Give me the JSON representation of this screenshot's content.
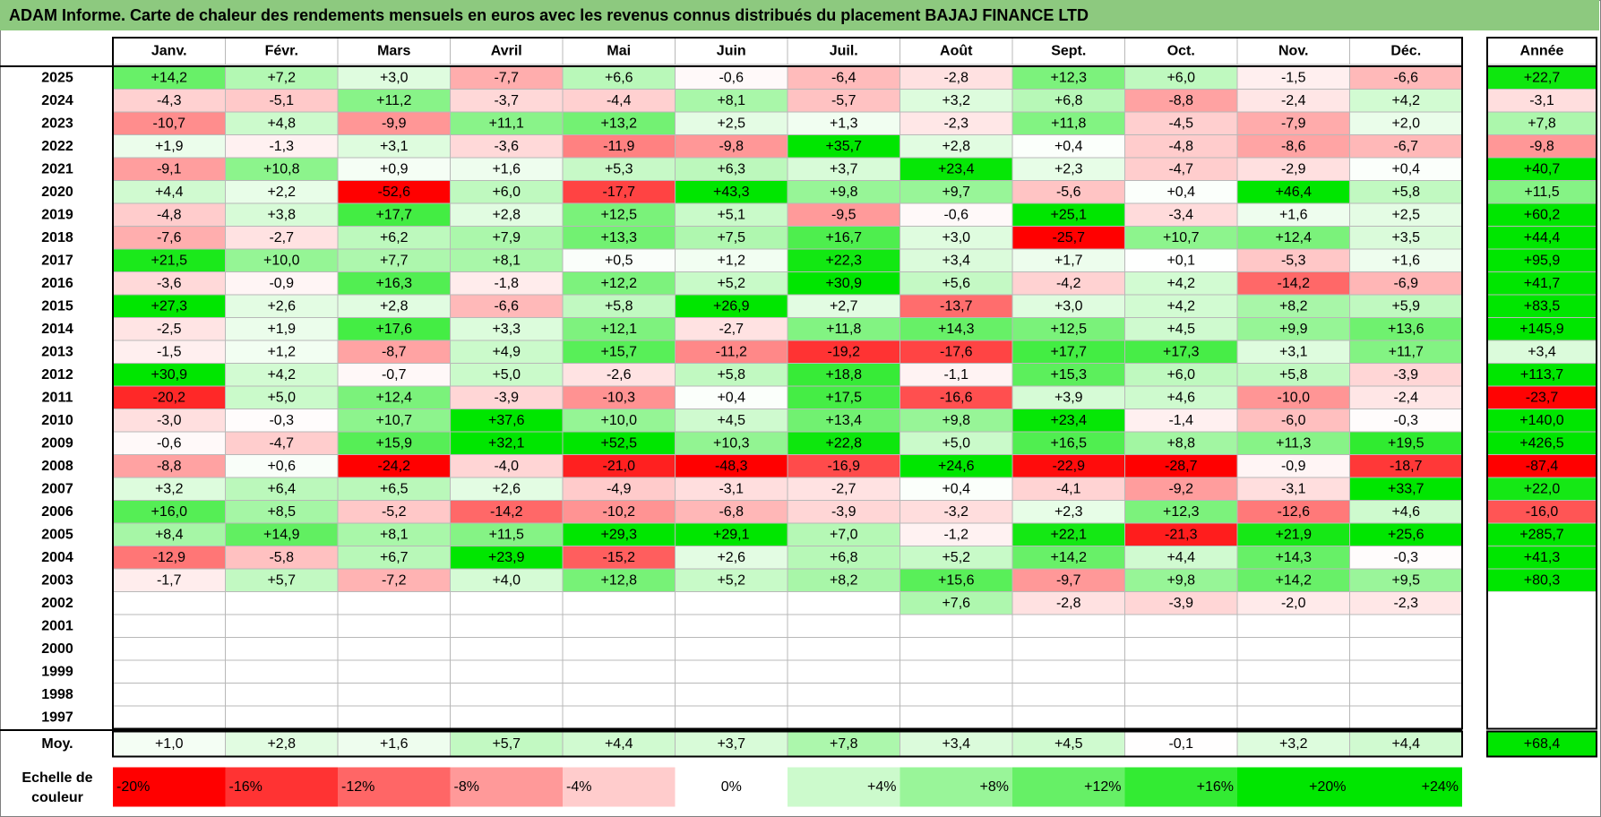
{
  "title": "ADAM Informe. Carte de chaleur des rendements mensuels en euros avec les revenus connus distribués du placement BAJAJ FINANCE LTD",
  "chart_data": {
    "type": "heatmap",
    "title": "ADAM Informe. Carte de chaleur des rendements mensuels en euros avec les revenus connus distribués du placement BAJAJ FINANCE LTD",
    "months": [
      "Janv.",
      "Févr.",
      "Mars",
      "Avril",
      "Mai",
      "Juin",
      "Juil.",
      "Août",
      "Sept.",
      "Oct.",
      "Nov.",
      "Déc."
    ],
    "year_header": "Année",
    "rows": [
      {
        "year": "2025",
        "values": [
          "+14,2",
          "+7,2",
          "+3,0",
          "-7,7",
          "+6,6",
          "-0,6",
          "-6,4",
          "-2,8",
          "+12,3",
          "+6,0",
          "-1,5",
          "-6,6"
        ],
        "annual": "+22,7"
      },
      {
        "year": "2024",
        "values": [
          "-4,3",
          "-5,1",
          "+11,2",
          "-3,7",
          "-4,4",
          "+8,1",
          "-5,7",
          "+3,2",
          "+6,8",
          "-8,8",
          "-2,4",
          "+4,2"
        ],
        "annual": "-3,1"
      },
      {
        "year": "2023",
        "values": [
          "-10,7",
          "+4,8",
          "-9,9",
          "+11,1",
          "+13,2",
          "+2,5",
          "+1,3",
          "-2,3",
          "+11,8",
          "-4,5",
          "-7,9",
          "+2,0"
        ],
        "annual": "+7,8"
      },
      {
        "year": "2022",
        "values": [
          "+1,9",
          "-1,3",
          "+3,1",
          "-3,6",
          "-11,9",
          "-9,8",
          "+35,7",
          "+2,8",
          "+0,4",
          "-4,8",
          "-8,6",
          "-6,7"
        ],
        "annual": "-9,8"
      },
      {
        "year": "2021",
        "values": [
          "-9,1",
          "+10,8",
          "+0,9",
          "+1,6",
          "+5,3",
          "+6,3",
          "+3,7",
          "+23,4",
          "+2,3",
          "-4,7",
          "-2,9",
          "+0,4"
        ],
        "annual": "+40,7"
      },
      {
        "year": "2020",
        "values": [
          "+4,4",
          "+2,2",
          "-52,6",
          "+6,0",
          "-17,7",
          "+43,3",
          "+9,8",
          "+9,7",
          "-5,6",
          "+0,4",
          "+46,4",
          "+5,8"
        ],
        "annual": "+11,5"
      },
      {
        "year": "2019",
        "values": [
          "-4,8",
          "+3,8",
          "+17,7",
          "+2,8",
          "+12,5",
          "+5,1",
          "-9,5",
          "-0,6",
          "+25,1",
          "-3,4",
          "+1,6",
          "+2,5"
        ],
        "annual": "+60,2"
      },
      {
        "year": "2018",
        "values": [
          "-7,6",
          "-2,7",
          "+6,2",
          "+7,9",
          "+13,3",
          "+7,5",
          "+16,7",
          "+3,0",
          "-25,7",
          "+10,7",
          "+12,4",
          "+3,5"
        ],
        "annual": "+44,4"
      },
      {
        "year": "2017",
        "values": [
          "+21,5",
          "+10,0",
          "+7,7",
          "+8,1",
          "+0,5",
          "+1,2",
          "+22,3",
          "+3,4",
          "+1,7",
          "+0,1",
          "-5,3",
          "+1,6"
        ],
        "annual": "+95,9"
      },
      {
        "year": "2016",
        "values": [
          "-3,6",
          "-0,9",
          "+16,3",
          "-1,8",
          "+12,2",
          "+5,2",
          "+30,9",
          "+5,6",
          "-4,2",
          "+4,2",
          "-14,2",
          "-6,9"
        ],
        "annual": "+41,7"
      },
      {
        "year": "2015",
        "values": [
          "+27,3",
          "+2,6",
          "+2,8",
          "-6,6",
          "+5,8",
          "+26,9",
          "+2,7",
          "-13,7",
          "+3,0",
          "+4,2",
          "+8,2",
          "+5,9"
        ],
        "annual": "+83,5"
      },
      {
        "year": "2014",
        "values": [
          "-2,5",
          "+1,9",
          "+17,6",
          "+3,3",
          "+12,1",
          "-2,7",
          "+11,8",
          "+14,3",
          "+12,5",
          "+4,5",
          "+9,9",
          "+13,6"
        ],
        "annual": "+145,9"
      },
      {
        "year": "2013",
        "values": [
          "-1,5",
          "+1,2",
          "-8,7",
          "+4,9",
          "+15,7",
          "-11,2",
          "-19,2",
          "-17,6",
          "+17,7",
          "+17,3",
          "+3,1",
          "+11,7"
        ],
        "annual": "+3,4"
      },
      {
        "year": "2012",
        "values": [
          "+30,9",
          "+4,2",
          "-0,7",
          "+5,0",
          "-2,6",
          "+5,8",
          "+18,8",
          "-1,1",
          "+15,3",
          "+6,0",
          "+5,8",
          "-3,9"
        ],
        "annual": "+113,7"
      },
      {
        "year": "2011",
        "values": [
          "-20,2",
          "+5,0",
          "+12,4",
          "-3,9",
          "-10,3",
          "+0,4",
          "+17,5",
          "-16,6",
          "+3,9",
          "+4,6",
          "-10,0",
          "-2,4"
        ],
        "annual": "-23,7"
      },
      {
        "year": "2010",
        "values": [
          "-3,0",
          "-0,3",
          "+10,7",
          "+37,6",
          "+10,0",
          "+4,5",
          "+13,4",
          "+9,8",
          "+23,4",
          "-1,4",
          "-6,0",
          "-0,3"
        ],
        "annual": "+140,0"
      },
      {
        "year": "2009",
        "values": [
          "-0,6",
          "-4,7",
          "+15,9",
          "+32,1",
          "+52,5",
          "+10,3",
          "+22,8",
          "+5,0",
          "+16,5",
          "+8,8",
          "+11,3",
          "+19,5"
        ],
        "annual": "+426,5"
      },
      {
        "year": "2008",
        "values": [
          "-8,8",
          "+0,6",
          "-24,2",
          "-4,0",
          "-21,0",
          "-48,3",
          "-16,9",
          "+24,6",
          "-22,9",
          "-28,7",
          "-0,9",
          "-18,7"
        ],
        "annual": "-87,4"
      },
      {
        "year": "2007",
        "values": [
          "+3,2",
          "+6,4",
          "+6,5",
          "+2,6",
          "-4,9",
          "-3,1",
          "-2,7",
          "+0,4",
          "-4,1",
          "-9,2",
          "-3,1",
          "+33,7"
        ],
        "annual": "+22,0"
      },
      {
        "year": "2006",
        "values": [
          "+16,0",
          "+8,5",
          "-5,2",
          "-14,2",
          "-10,2",
          "-6,8",
          "-3,9",
          "-3,2",
          "+2,3",
          "+12,3",
          "-12,6",
          "+4,6"
        ],
        "annual": "-16,0"
      },
      {
        "year": "2005",
        "values": [
          "+8,4",
          "+14,9",
          "+8,1",
          "+11,5",
          "+29,3",
          "+29,1",
          "+7,0",
          "-1,2",
          "+22,1",
          "-21,3",
          "+21,9",
          "+25,6"
        ],
        "annual": "+285,7"
      },
      {
        "year": "2004",
        "values": [
          "-12,9",
          "-5,8",
          "+6,7",
          "+23,9",
          "-15,2",
          "+2,6",
          "+6,8",
          "+5,2",
          "+14,2",
          "+4,4",
          "+14,3",
          "-0,3"
        ],
        "annual": "+41,3"
      },
      {
        "year": "2003",
        "values": [
          "-1,7",
          "+5,7",
          "-7,2",
          "+4,0",
          "+12,8",
          "+5,2",
          "+8,2",
          "+15,6",
          "-9,7",
          "+9,8",
          "+14,2",
          "+9,5"
        ],
        "annual": "+80,3"
      },
      {
        "year": "2002",
        "values": [
          "",
          "",
          "",
          "",
          "",
          "",
          "",
          "+7,6",
          "-2,8",
          "-3,9",
          "-2,0",
          "-2,3"
        ],
        "annual": ""
      },
      {
        "year": "2001",
        "values": [
          "",
          "",
          "",
          "",
          "",
          "",
          "",
          "",
          "",
          "",
          "",
          ""
        ],
        "annual": ""
      },
      {
        "year": "2000",
        "values": [
          "",
          "",
          "",
          "",
          "",
          "",
          "",
          "",
          "",
          "",
          "",
          ""
        ],
        "annual": ""
      },
      {
        "year": "1999",
        "values": [
          "",
          "",
          "",
          "",
          "",
          "",
          "",
          "",
          "",
          "",
          "",
          ""
        ],
        "annual": ""
      },
      {
        "year": "1998",
        "values": [
          "",
          "",
          "",
          "",
          "",
          "",
          "",
          "",
          "",
          "",
          "",
          ""
        ],
        "annual": ""
      },
      {
        "year": "1997",
        "values": [
          "",
          "",
          "",
          "",
          "",
          "",
          "",
          "",
          "",
          "",
          "",
          ""
        ],
        "annual": ""
      }
    ],
    "average": {
      "label": "Moy.",
      "values": [
        "+1,0",
        "+2,8",
        "+1,6",
        "+5,7",
        "+4,4",
        "+3,7",
        "+7,8",
        "+3,4",
        "+4,5",
        "-0,1",
        "+3,2",
        "+4,4"
      ],
      "annual": "+68,4"
    },
    "scale": {
      "label_line1": "Echelle de",
      "label_line2": "couleur",
      "steps": [
        "-20%",
        "-16%",
        "-12%",
        "-8%",
        "-4%",
        "0%",
        "+4%",
        "+8%",
        "+12%",
        "+16%",
        "+20%",
        "+24%"
      ]
    },
    "colors": {
      "neg_max": "#ff0000",
      "neutral": "#ffffff",
      "pos_max": "#00e600",
      "title_bg": "#8dc97f",
      "grid": "#b8b8b8"
    }
  }
}
